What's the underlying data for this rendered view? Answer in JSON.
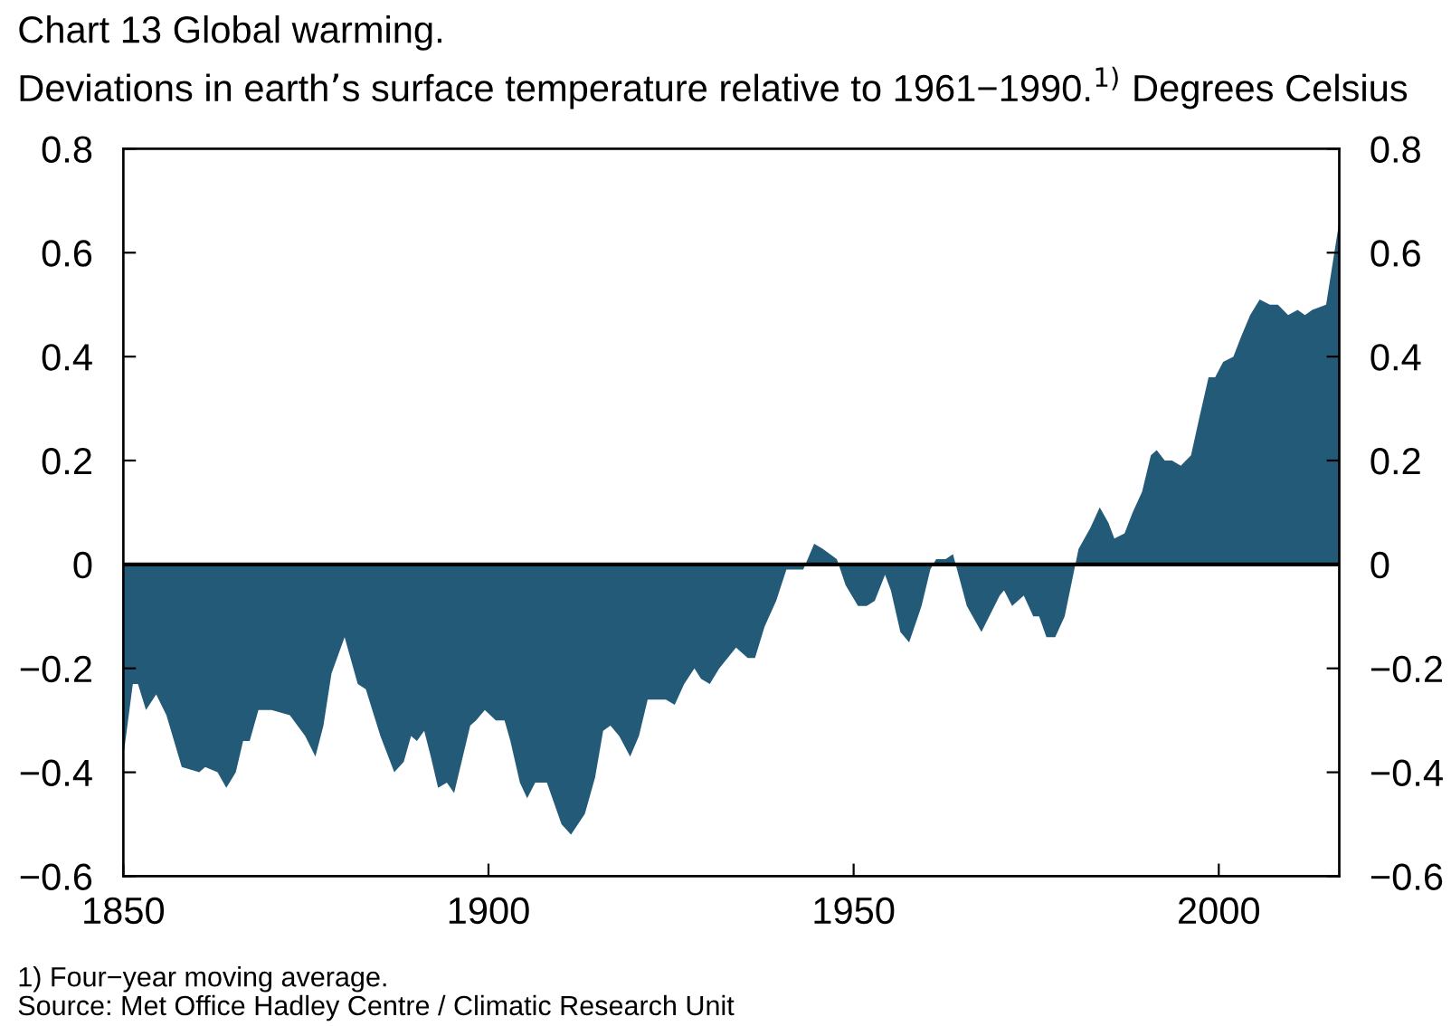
{
  "chart_data": {
    "type": "area",
    "title": "Chart 13 Global warming.",
    "subtitle": "Deviations in earth’s surface temperature relative to 1961−1990.$^{1)}$ Degrees Celsius",
    "annotations": [
      "1) Four−year moving average.",
      "Source: Met Office Hadley Centre / Climatic Research Unit"
    ],
    "x": [
      1850,
      1851.3,
      1852,
      1853.1,
      1854.5,
      1855.9,
      1858,
      1860.4,
      1861.2,
      1862.9,
      1864.1,
      1865.4,
      1866.4,
      1867.3,
      1868.5,
      1870.3,
      1872.8,
      1874.9,
      1876.3,
      1877.4,
      1878.5,
      1880.3,
      1882.1,
      1883.2,
      1885.2,
      1887.1,
      1888.4,
      1889.4,
      1890.2,
      1891.2,
      1892.1,
      1893.1,
      1894.3,
      1895.3,
      1897.5,
      1898.3,
      1899.5,
      1901,
      1902.2,
      1903,
      1904.3,
      1905.3,
      1906.4,
      1908,
      1910,
      1911.3,
      1913.2,
      1914.6,
      1915.7,
      1916.7,
      1917.9,
      1919.4,
      1920.6,
      1921.8,
      1922.9,
      1924.3,
      1925.5,
      1926.8,
      1928.2,
      1929.1,
      1930.3,
      1931.6,
      1933.9,
      1935.5,
      1936.5,
      1937.8,
      1939.4,
      1940.8,
      1942.1,
      1943.1,
      1944.6,
      1945.8,
      1947.7,
      1948.9,
      1950.6,
      1951.8,
      1952.9,
      1954.3,
      1955.1,
      1956.4,
      1957.6,
      1959.3,
      1960.5,
      1961.3,
      1962.6,
      1963.6,
      1965.5,
      1967.5,
      1970,
      1970.6,
      1971.7,
      1973.3,
      1974.6,
      1975.4,
      1976.4,
      1977.6,
      1978.9,
      1980.8,
      1982.4,
      1983.7,
      1984.9,
      1985.7,
      1987.1,
      1988.2,
      1989.5,
      1990.7,
      1991.5,
      1992.6,
      1993.6,
      1994.8,
      1996.2,
      1997.3,
      1998.6,
      1999.5,
      2000.6,
      2002,
      2003.1,
      2004.3,
      2005.6,
      2007,
      2008.1,
      2009.5,
      2010.8,
      2011.8,
      2012.8,
      2014.7,
      2016.5
    ],
    "series": [
      {
        "color": "#235a78",
        "values": [
          -0.37,
          -0.23,
          -0.23,
          -0.28,
          -0.25,
          -0.29,
          -0.39,
          -0.4,
          -0.39,
          -0.4,
          -0.43,
          -0.4,
          -0.34,
          -0.34,
          -0.28,
          -0.28,
          -0.29,
          -0.33,
          -0.37,
          -0.31,
          -0.21,
          -0.14,
          -0.23,
          -0.24,
          -0.33,
          -0.4,
          -0.38,
          -0.33,
          -0.34,
          -0.32,
          -0.37,
          -0.43,
          -0.42,
          -0.44,
          -0.31,
          -0.3,
          -0.28,
          -0.3,
          -0.3,
          -0.34,
          -0.42,
          -0.45,
          -0.42,
          -0.42,
          -0.5,
          -0.52,
          -0.48,
          -0.41,
          -0.32,
          -0.31,
          -0.33,
          -0.37,
          -0.33,
          -0.26,
          -0.26,
          -0.26,
          -0.27,
          -0.23,
          -0.2,
          -0.22,
          -0.23,
          -0.2,
          -0.16,
          -0.18,
          -0.18,
          -0.12,
          -0.07,
          -0.01,
          -0.01,
          -0.01,
          0.04,
          0.03,
          0.01,
          -0.04,
          -0.08,
          -0.08,
          -0.07,
          -0.02,
          -0.05,
          -0.13,
          -0.15,
          -0.08,
          -0.01,
          0.01,
          0.01,
          0.02,
          -0.08,
          -0.13,
          -0.06,
          -0.05,
          -0.08,
          -0.06,
          -0.1,
          -0.1,
          -0.14,
          -0.14,
          -0.1,
          0.03,
          0.07,
          0.11,
          0.08,
          0.05,
          0.06,
          0.1,
          0.14,
          0.21,
          0.22,
          0.2,
          0.2,
          0.19,
          0.21,
          0.28,
          0.36,
          0.36,
          0.39,
          0.4,
          0.44,
          0.48,
          0.51,
          0.5,
          0.5,
          0.48,
          0.49,
          0.48,
          0.49,
          0.5,
          0.66
        ]
      }
    ],
    "xlim": [
      1850,
      2016.5
    ],
    "xticks": [
      1850,
      1900,
      1950,
      2000
    ],
    "ylim": [
      -0.6,
      0.8
    ],
    "yticks": [
      {
        "value": -0.6,
        "label": "−0.6"
      },
      {
        "value": -0.4,
        "label": "−0.4"
      },
      {
        "value": -0.2,
        "label": "−0.2"
      },
      0,
      0.2,
      0.4,
      0.6,
      0.8
    ],
    "y2lim": [
      -0.6,
      0.8
    ],
    "y2ticks": [
      {
        "value": -0.6,
        "label": "−0.6"
      },
      {
        "value": -0.4,
        "label": "−0.4"
      },
      {
        "value": -0.2,
        "label": "−0.2"
      },
      0,
      0.2,
      0.4,
      0.6,
      0.8
    ],
    "ref_lines": [
      {
        "axis": "y",
        "value": 0,
        "color": "#000000",
        "line_style": "solid"
      }
    ],
    "grid": false
  }
}
